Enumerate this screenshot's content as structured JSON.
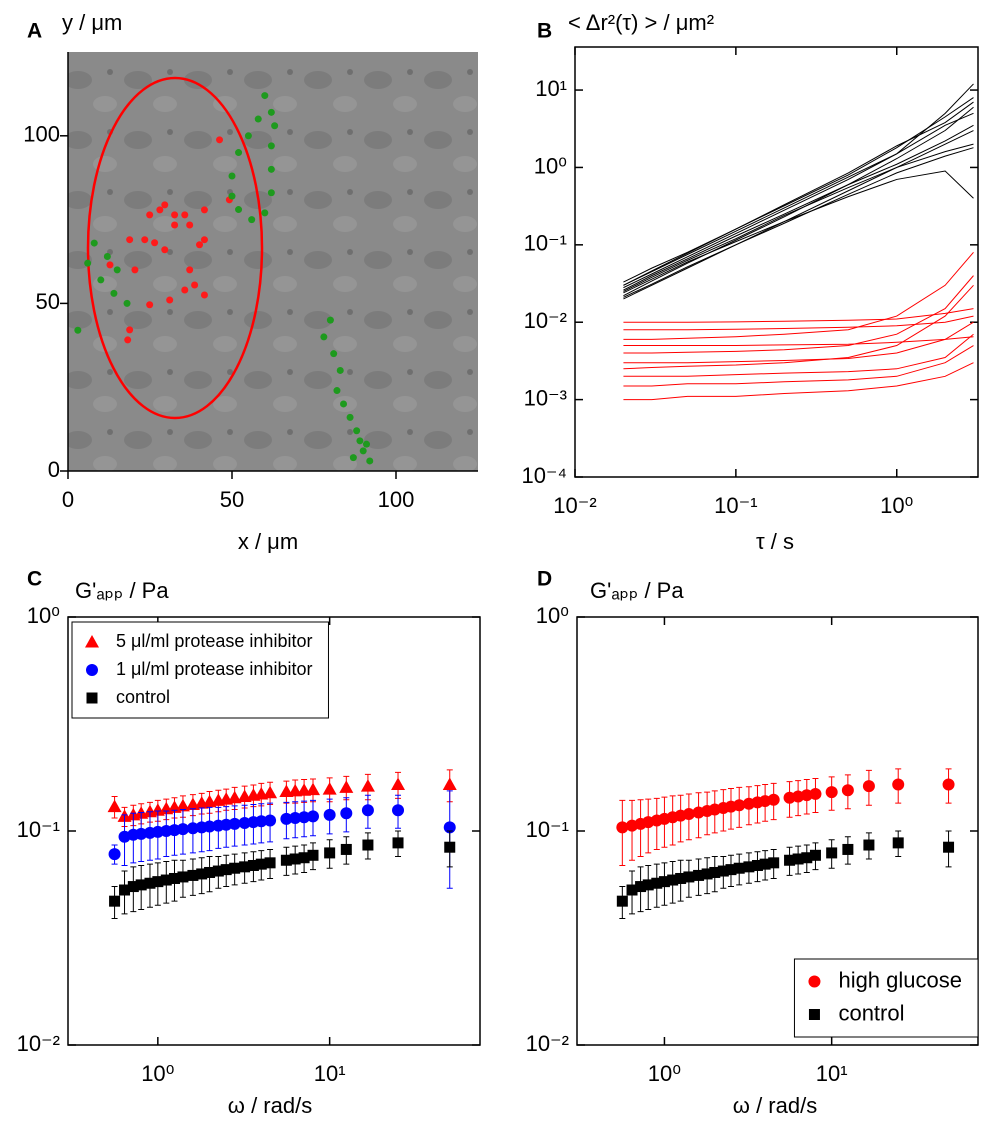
{
  "chart_data": [
    {
      "type": "scatter",
      "label": "A",
      "xlabel": "x / μm",
      "ylabel": "y / μm",
      "xlim": [
        0,
        125
      ],
      "ylim": [
        0,
        125
      ],
      "xticks": [
        0,
        50,
        100
      ],
      "yticks": [
        0,
        50,
        100
      ],
      "series": [
        {
          "color": "#ff1a1a",
          "x": [
            46.2,
            49.2,
            41.6,
            29.5,
            32.5,
            35.6,
            28.0,
            24.9,
            32.5,
            37.1,
            41.6,
            40.1,
            23.4,
            26.4,
            18.8,
            12.8,
            20.4,
            29.5,
            37.1,
            38.6,
            35.6,
            41.6,
            31.0,
            24.9,
            18.8,
            18.2
          ],
          "values": [
            98.8,
            80.9,
            77.9,
            79.4,
            76.4,
            76.4,
            77.9,
            76.4,
            73.4,
            73.4,
            69.0,
            67.5,
            69.0,
            68.1,
            69.0,
            61.5,
            60.0,
            66.0,
            60.0,
            55.5,
            54.0,
            52.5,
            51.0,
            49.6,
            42.1,
            39.1
          ]
        },
        {
          "color": "#1e9a1e",
          "x": [
            60,
            62,
            58,
            55,
            52,
            50,
            50,
            52,
            56,
            60,
            62,
            62,
            62,
            63,
            8,
            12,
            15,
            10,
            14,
            18,
            6,
            3,
            80,
            78,
            81,
            83,
            82,
            84,
            86,
            88,
            89,
            90,
            91,
            87,
            92
          ],
          "values": [
            112,
            107,
            105,
            100,
            95,
            88,
            82,
            78,
            75,
            77,
            83,
            90,
            97,
            103,
            68,
            64,
            60,
            57,
            53,
            50,
            62,
            42,
            45,
            40,
            35,
            30,
            24,
            20,
            16,
            12,
            9,
            6,
            8,
            4,
            3
          ]
        }
      ]
    },
    {
      "type": "line",
      "label": "B",
      "xlabel": "τ / s",
      "ylabel": "< Δr²(τ) > / μm²",
      "xscale": "log",
      "yscale": "log",
      "xlim": [
        0.01,
        3.2
      ],
      "ylim": [
        0.0001,
        36
      ],
      "xticks": [
        {
          "value": 0.01,
          "label": "10⁻²"
        },
        {
          "value": 0.1,
          "label": "10⁻¹"
        },
        {
          "value": 1,
          "label": "10⁰"
        }
      ],
      "yticks": [
        {
          "value": 0.0001,
          "label": "10⁻⁴"
        },
        {
          "value": 0.001,
          "label": "10⁻³"
        },
        {
          "value": 0.01,
          "label": "10⁻²"
        },
        {
          "value": 0.1,
          "label": "10⁻¹"
        },
        {
          "value": 1,
          "label": "10⁰"
        },
        {
          "value": 10,
          "label": "10¹"
        }
      ],
      "x": [
        0.02,
        0.03,
        0.05,
        0.1,
        0.2,
        0.5,
        1,
        2,
        3
      ],
      "series": [
        {
          "color": "#000000",
          "values": [
            0.02,
            0.03,
            0.05,
            0.1,
            0.2,
            0.5,
            1.0,
            2.0,
            3.0
          ]
        },
        {
          "color": "#000000",
          "values": [
            0.025,
            0.038,
            0.063,
            0.12,
            0.24,
            0.55,
            1.0,
            1.6,
            2.0
          ]
        },
        {
          "color": "#000000",
          "values": [
            0.03,
            0.045,
            0.075,
            0.15,
            0.3,
            0.75,
            1.5,
            3.5,
            5.0
          ]
        },
        {
          "color": "#000000",
          "values": [
            0.022,
            0.034,
            0.058,
            0.115,
            0.23,
            0.6,
            1.3,
            3.0,
            6.0
          ]
        },
        {
          "color": "#000000",
          "values": [
            0.028,
            0.042,
            0.07,
            0.14,
            0.28,
            0.7,
            1.5,
            5,
            12
          ]
        },
        {
          "color": "#000000",
          "values": [
            0.024,
            0.036,
            0.06,
            0.11,
            0.2,
            0.42,
            0.7,
            0.9,
            0.4
          ]
        },
        {
          "color": "#000000",
          "values": [
            0.033,
            0.05,
            0.08,
            0.16,
            0.32,
            0.8,
            1.8,
            4.5,
            8
          ]
        },
        {
          "color": "#000000",
          "values": [
            0.026,
            0.04,
            0.066,
            0.13,
            0.25,
            0.6,
            1.1,
            2.2,
            3.5
          ]
        },
        {
          "color": "#000000",
          "values": [
            0.021,
            0.031,
            0.052,
            0.1,
            0.19,
            0.45,
            0.85,
            1.4,
            1.8
          ]
        },
        {
          "color": "#000000",
          "values": [
            0.03,
            0.046,
            0.078,
            0.16,
            0.33,
            0.85,
            1.9,
            3.8,
            7
          ]
        },
        {
          "color": "#ff0000",
          "values": [
            0.001,
            0.001,
            0.0011,
            0.0011,
            0.0012,
            0.0013,
            0.0015,
            0.002,
            0.003
          ]
        },
        {
          "color": "#ff0000",
          "values": [
            0.0015,
            0.0015,
            0.0016,
            0.0016,
            0.0017,
            0.0018,
            0.002,
            0.003,
            0.005
          ]
        },
        {
          "color": "#ff0000",
          "values": [
            0.002,
            0.002,
            0.002,
            0.0021,
            0.0022,
            0.0023,
            0.0025,
            0.0035,
            0.007
          ]
        },
        {
          "color": "#ff0000",
          "values": [
            0.003,
            0.003,
            0.003,
            0.0031,
            0.0032,
            0.0034,
            0.004,
            0.006,
            0.01
          ]
        },
        {
          "color": "#ff0000",
          "values": [
            0.004,
            0.004,
            0.0041,
            0.0042,
            0.0044,
            0.005,
            0.007,
            0.015,
            0.04
          ]
        },
        {
          "color": "#ff0000",
          "values": [
            0.005,
            0.005,
            0.005,
            0.005,
            0.0051,
            0.0052,
            0.0055,
            0.006,
            0.0065
          ]
        },
        {
          "color": "#ff0000",
          "values": [
            0.006,
            0.006,
            0.0062,
            0.0065,
            0.007,
            0.008,
            0.012,
            0.03,
            0.08
          ]
        },
        {
          "color": "#ff0000",
          "values": [
            0.008,
            0.008,
            0.008,
            0.0081,
            0.0083,
            0.0086,
            0.009,
            0.01,
            0.012
          ]
        },
        {
          "color": "#ff0000",
          "values": [
            0.01,
            0.01,
            0.01,
            0.0101,
            0.0103,
            0.0106,
            0.011,
            0.013,
            0.015
          ]
        },
        {
          "color": "#ff0000",
          "values": [
            0.0025,
            0.0026,
            0.0027,
            0.0028,
            0.003,
            0.0035,
            0.005,
            0.012,
            0.03
          ]
        }
      ]
    },
    {
      "type": "scatter",
      "label": "C",
      "xlabel": "ω / rad/s",
      "ylabel": "G'ₐₚₚ / Pa",
      "xscale": "log",
      "yscale": "log",
      "xlim": [
        0.3,
        75
      ],
      "ylim": [
        0.01,
        1
      ],
      "legend": "upper left",
      "xticks": [
        {
          "value": 1,
          "label": "10⁰"
        },
        {
          "value": 10,
          "label": "10¹"
        }
      ],
      "yticks": [
        {
          "value": 0.01,
          "label": "10⁻²"
        },
        {
          "value": 0.1,
          "label": "10⁻¹"
        },
        {
          "value": 1,
          "label": "10⁰"
        }
      ],
      "x": [
        0.56,
        0.64,
        0.72,
        0.8,
        0.9,
        1.0,
        1.12,
        1.25,
        1.4,
        1.6,
        1.8,
        2.0,
        2.25,
        2.5,
        2.8,
        3.2,
        3.6,
        4.0,
        4.5,
        5.6,
        6.3,
        7.1,
        8.0,
        10,
        12.5,
        16.7,
        25,
        50
      ],
      "series": [
        {
          "name": "5 μl/ml protease inhibitor",
          "color": "#ff0000",
          "marker": "triangle",
          "values": [
            0.13,
            0.117,
            0.119,
            0.121,
            0.123,
            0.125,
            0.127,
            0.129,
            0.131,
            0.133,
            0.135,
            0.137,
            0.139,
            0.141,
            0.143,
            0.145,
            0.147,
            0.149,
            0.151,
            0.153,
            0.154,
            0.155,
            0.156,
            0.157,
            0.16,
            0.162,
            0.165,
            0.165
          ],
          "errors": [
            0.015,
            0.012,
            0.013,
            0.013,
            0.013,
            0.014,
            0.014,
            0.014,
            0.015,
            0.015,
            0.015,
            0.016,
            0.016,
            0.016,
            0.017,
            0.017,
            0.017,
            0.018,
            0.018,
            0.018,
            0.019,
            0.019,
            0.019,
            0.02,
            0.02,
            0.022,
            0.023,
            0.028
          ]
        },
        {
          "name": "1 μl/ml protease inhibitor",
          "color": "#0000ff",
          "marker": "circle",
          "values": [
            0.078,
            0.094,
            0.096,
            0.097,
            0.098,
            0.099,
            0.1,
            0.101,
            0.102,
            0.103,
            0.104,
            0.105,
            0.106,
            0.107,
            0.108,
            0.109,
            0.11,
            0.111,
            0.112,
            0.114,
            0.115,
            0.116,
            0.117,
            0.119,
            0.121,
            0.125,
            0.125,
            0.104
          ],
          "errors": [
            0.008,
            0.025,
            0.025,
            0.025,
            0.025,
            0.025,
            0.024,
            0.024,
            0.024,
            0.024,
            0.024,
            0.024,
            0.023,
            0.023,
            0.023,
            0.023,
            0.023,
            0.023,
            0.023,
            0.022,
            0.022,
            0.022,
            0.022,
            0.022,
            0.022,
            0.022,
            0.022,
            0.05
          ]
        },
        {
          "name": "control",
          "color": "#000000",
          "marker": "square",
          "values": [
            0.047,
            0.053,
            0.055,
            0.056,
            0.057,
            0.058,
            0.059,
            0.06,
            0.061,
            0.062,
            0.063,
            0.064,
            0.065,
            0.066,
            0.067,
            0.068,
            0.069,
            0.07,
            0.071,
            0.073,
            0.074,
            0.075,
            0.077,
            0.079,
            0.082,
            0.086,
            0.088,
            0.084
          ],
          "errors": [
            0.008,
            0.012,
            0.013,
            0.013,
            0.013,
            0.013,
            0.013,
            0.013,
            0.012,
            0.012,
            0.012,
            0.012,
            0.011,
            0.011,
            0.011,
            0.011,
            0.011,
            0.011,
            0.011,
            0.011,
            0.011,
            0.011,
            0.011,
            0.012,
            0.012,
            0.012,
            0.012,
            0.016
          ]
        }
      ]
    },
    {
      "type": "scatter",
      "label": "D",
      "xlabel": "ω / rad/s",
      "ylabel": "G'ₐₚₚ / Pa",
      "xscale": "log",
      "yscale": "log",
      "xlim": [
        0.3,
        75
      ],
      "ylim": [
        0.01,
        1
      ],
      "legend": "lower right",
      "xticks": [
        {
          "value": 1,
          "label": "10⁰"
        },
        {
          "value": 10,
          "label": "10¹"
        }
      ],
      "yticks": [
        {
          "value": 0.01,
          "label": "10⁻²"
        },
        {
          "value": 0.1,
          "label": "10⁻¹"
        },
        {
          "value": 1,
          "label": "10⁰"
        }
      ],
      "x": [
        0.56,
        0.64,
        0.72,
        0.8,
        0.9,
        1.0,
        1.12,
        1.25,
        1.4,
        1.6,
        1.8,
        2.0,
        2.25,
        2.5,
        2.8,
        3.2,
        3.6,
        4.0,
        4.5,
        5.6,
        6.3,
        7.1,
        8.0,
        10,
        12.5,
        16.7,
        25,
        50
      ],
      "series": [
        {
          "name": "high glucose",
          "color": "#ff0000",
          "marker": "circle",
          "values": [
            0.104,
            0.106,
            0.108,
            0.11,
            0.112,
            0.114,
            0.116,
            0.118,
            0.12,
            0.122,
            0.124,
            0.126,
            0.128,
            0.13,
            0.132,
            0.134,
            0.136,
            0.138,
            0.14,
            0.143,
            0.145,
            0.147,
            0.149,
            0.152,
            0.155,
            0.162,
            0.165,
            0.165
          ],
          "errors": [
            0.035,
            0.033,
            0.032,
            0.031,
            0.03,
            0.03,
            0.03,
            0.029,
            0.029,
            0.029,
            0.028,
            0.028,
            0.028,
            0.028,
            0.028,
            0.027,
            0.027,
            0.027,
            0.027,
            0.027,
            0.027,
            0.027,
            0.027,
            0.027,
            0.028,
            0.03,
            0.03,
            0.03
          ]
        },
        {
          "name": "control",
          "color": "#000000",
          "marker": "square",
          "values": [
            0.047,
            0.053,
            0.055,
            0.056,
            0.057,
            0.058,
            0.059,
            0.06,
            0.061,
            0.062,
            0.063,
            0.064,
            0.065,
            0.066,
            0.067,
            0.068,
            0.069,
            0.07,
            0.071,
            0.073,
            0.074,
            0.075,
            0.077,
            0.079,
            0.082,
            0.086,
            0.088,
            0.084
          ],
          "errors": [
            0.008,
            0.012,
            0.013,
            0.013,
            0.013,
            0.013,
            0.013,
            0.013,
            0.012,
            0.012,
            0.012,
            0.012,
            0.011,
            0.011,
            0.011,
            0.011,
            0.011,
            0.011,
            0.011,
            0.011,
            0.011,
            0.011,
            0.011,
            0.012,
            0.012,
            0.012,
            0.012,
            0.016
          ]
        }
      ]
    }
  ]
}
